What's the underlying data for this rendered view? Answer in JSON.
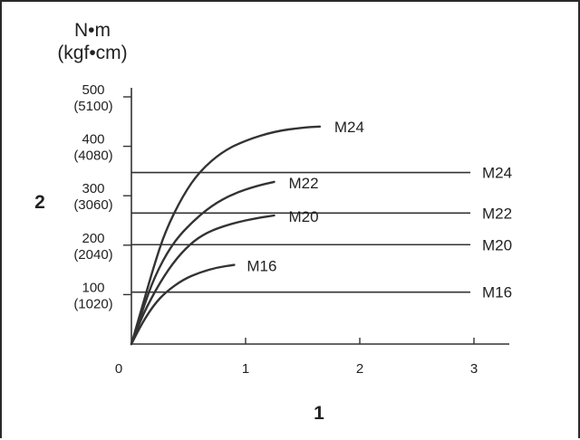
{
  "chart_data": {
    "type": "line",
    "y_unit_line1": "N•m",
    "y_unit_line2": "(kgf•cm)",
    "xlabel": "1",
    "ylabel": "2",
    "xlim": [
      0,
      3.3
    ],
    "ylim": [
      0,
      520
    ],
    "x_ticks": [
      {
        "value": 0,
        "label": "0"
      },
      {
        "value": 1,
        "label": "1"
      },
      {
        "value": 2,
        "label": "2"
      },
      {
        "value": 3,
        "label": "3"
      }
    ],
    "y_ticks": [
      {
        "value": 100,
        "label": "100",
        "sublabel": "(1020)"
      },
      {
        "value": 200,
        "label": "200",
        "sublabel": "(2040)"
      },
      {
        "value": 300,
        "label": "300",
        "sublabel": "(3060)"
      },
      {
        "value": 400,
        "label": "400",
        "sublabel": "(4080)"
      },
      {
        "value": 500,
        "label": "500",
        "sublabel": "(5100)"
      }
    ],
    "series": [
      {
        "name": "M24",
        "x": [
          0,
          0.1,
          0.2,
          0.3,
          0.45,
          0.6,
          0.8,
          1.0,
          1.25,
          1.5,
          1.65
        ],
        "y": [
          0,
          80,
          160,
          230,
          300,
          350,
          390,
          412,
          430,
          438,
          440
        ]
      },
      {
        "name": "M22",
        "x": [
          0,
          0.1,
          0.2,
          0.35,
          0.5,
          0.7,
          0.9,
          1.1,
          1.25
        ],
        "y": [
          0,
          70,
          135,
          200,
          240,
          280,
          305,
          320,
          328
        ]
      },
      {
        "name": "M20",
        "x": [
          0,
          0.1,
          0.25,
          0.4,
          0.55,
          0.7,
          0.9,
          1.1,
          1.25
        ],
        "y": [
          0,
          60,
          125,
          175,
          210,
          230,
          245,
          255,
          260
        ]
      },
      {
        "name": "M16",
        "x": [
          0,
          0.1,
          0.2,
          0.3,
          0.45,
          0.6,
          0.75,
          0.9
        ],
        "y": [
          0,
          45,
          80,
          105,
          130,
          145,
          155,
          160
        ]
      }
    ],
    "reference_lines": [
      {
        "name": "M24",
        "y": 347
      },
      {
        "name": "M22",
        "y": 265
      },
      {
        "name": "M20",
        "y": 201
      },
      {
        "name": "M16",
        "y": 105
      }
    ]
  }
}
